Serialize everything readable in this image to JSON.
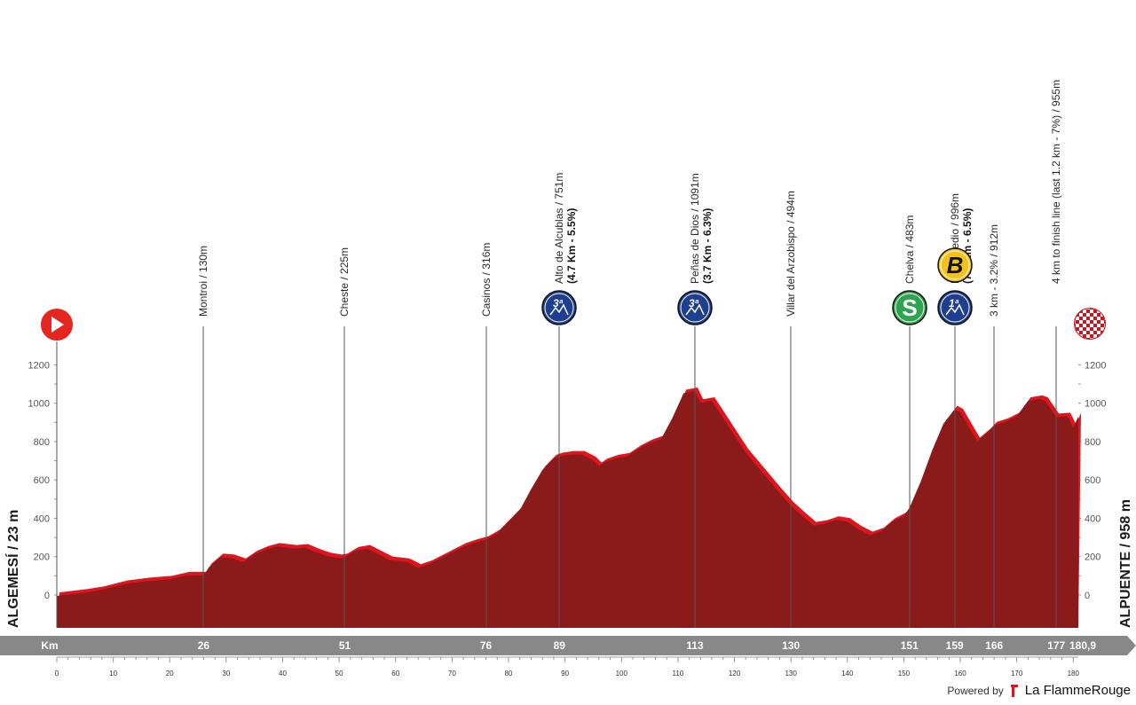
{
  "chart_data": {
    "type": "area",
    "title": "",
    "start_label": "ALGEMESÍ / 23 m",
    "finish_label": "ALPUENTE / 958 m",
    "band_label": "Km",
    "total_km_label": "180,9",
    "xlim": [
      0,
      180.9
    ],
    "ylim": [
      0,
      1250
    ],
    "y_ticks": [
      0,
      200,
      400,
      600,
      800,
      1000,
      1200
    ],
    "x_ticks": [
      0,
      10,
      20,
      30,
      40,
      50,
      60,
      70,
      80,
      90,
      100,
      110,
      120,
      130,
      140,
      150,
      160,
      170,
      180
    ],
    "x_tick_labels": [
      "0",
      "10",
      "20",
      "30",
      "40",
      "50",
      "60",
      "70",
      "80",
      "90",
      "100",
      "110",
      "120",
      "130",
      "140",
      "150",
      "160",
      "170",
      "180"
    ],
    "profile": [
      {
        "km": 0,
        "alt": 23
      },
      {
        "km": 5,
        "alt": 40
      },
      {
        "km": 8,
        "alt": 55
      },
      {
        "km": 12,
        "alt": 85
      },
      {
        "km": 16,
        "alt": 100
      },
      {
        "km": 20,
        "alt": 110
      },
      {
        "km": 23,
        "alt": 130
      },
      {
        "km": 26,
        "alt": 130
      },
      {
        "km": 27,
        "alt": 175
      },
      {
        "km": 29,
        "alt": 225
      },
      {
        "km": 31,
        "alt": 220
      },
      {
        "km": 33,
        "alt": 200
      },
      {
        "km": 35,
        "alt": 240
      },
      {
        "km": 37,
        "alt": 265
      },
      {
        "km": 39,
        "alt": 280
      },
      {
        "km": 42,
        "alt": 270
      },
      {
        "km": 44,
        "alt": 275
      },
      {
        "km": 46,
        "alt": 250
      },
      {
        "km": 48,
        "alt": 230
      },
      {
        "km": 50,
        "alt": 220
      },
      {
        "km": 51,
        "alt": 225
      },
      {
        "km": 53,
        "alt": 260
      },
      {
        "km": 55,
        "alt": 270
      },
      {
        "km": 57,
        "alt": 240
      },
      {
        "km": 59,
        "alt": 210
      },
      {
        "km": 62,
        "alt": 200
      },
      {
        "km": 64,
        "alt": 170
      },
      {
        "km": 66,
        "alt": 190
      },
      {
        "km": 68,
        "alt": 220
      },
      {
        "km": 70,
        "alt": 250
      },
      {
        "km": 72,
        "alt": 280
      },
      {
        "km": 74,
        "alt": 300
      },
      {
        "km": 76,
        "alt": 316
      },
      {
        "km": 78,
        "alt": 350
      },
      {
        "km": 80,
        "alt": 410
      },
      {
        "km": 82,
        "alt": 470
      },
      {
        "km": 84,
        "alt": 580
      },
      {
        "km": 86,
        "alt": 680
      },
      {
        "km": 88,
        "alt": 740
      },
      {
        "km": 89,
        "alt": 751
      },
      {
        "km": 91,
        "alt": 760
      },
      {
        "km": 93,
        "alt": 760
      },
      {
        "km": 95,
        "alt": 730
      },
      {
        "km": 96,
        "alt": 700
      },
      {
        "km": 97,
        "alt": 720
      },
      {
        "km": 99,
        "alt": 740
      },
      {
        "km": 101,
        "alt": 750
      },
      {
        "km": 103,
        "alt": 790
      },
      {
        "km": 105,
        "alt": 820
      },
      {
        "km": 107,
        "alt": 840
      },
      {
        "km": 109,
        "alt": 950
      },
      {
        "km": 111,
        "alt": 1080
      },
      {
        "km": 113,
        "alt": 1091
      },
      {
        "km": 114,
        "alt": 1030
      },
      {
        "km": 116,
        "alt": 1040
      },
      {
        "km": 118,
        "alt": 950
      },
      {
        "km": 120,
        "alt": 860
      },
      {
        "km": 122,
        "alt": 770
      },
      {
        "km": 124,
        "alt": 700
      },
      {
        "km": 126,
        "alt": 630
      },
      {
        "km": 128,
        "alt": 560
      },
      {
        "km": 130,
        "alt": 494
      },
      {
        "km": 132,
        "alt": 440
      },
      {
        "km": 134,
        "alt": 390
      },
      {
        "km": 136,
        "alt": 400
      },
      {
        "km": 138,
        "alt": 420
      },
      {
        "km": 140,
        "alt": 410
      },
      {
        "km": 142,
        "alt": 370
      },
      {
        "km": 144,
        "alt": 340
      },
      {
        "km": 146,
        "alt": 360
      },
      {
        "km": 148,
        "alt": 410
      },
      {
        "km": 150,
        "alt": 440
      },
      {
        "km": 151,
        "alt": 483
      },
      {
        "km": 153,
        "alt": 620
      },
      {
        "km": 155,
        "alt": 780
      },
      {
        "km": 157,
        "alt": 920
      },
      {
        "km": 159,
        "alt": 996
      },
      {
        "km": 160,
        "alt": 980
      },
      {
        "km": 162,
        "alt": 880
      },
      {
        "km": 163,
        "alt": 830
      },
      {
        "km": 165,
        "alt": 880
      },
      {
        "km": 166,
        "alt": 912
      },
      {
        "km": 168,
        "alt": 930
      },
      {
        "km": 170,
        "alt": 960
      },
      {
        "km": 172,
        "alt": 1040
      },
      {
        "km": 174,
        "alt": 1050
      },
      {
        "km": 175,
        "alt": 1040
      },
      {
        "km": 177,
        "alt": 955
      },
      {
        "km": 179,
        "alt": 960
      },
      {
        "km": 180,
        "alt": 900
      },
      {
        "km": 180.9,
        "alt": 958
      }
    ],
    "waypoints": [
      {
        "km": 26,
        "band_label": "26",
        "label": "Montroi / 130m",
        "detail": "",
        "icon": ""
      },
      {
        "km": 51,
        "band_label": "51",
        "label": "Cheste / 225m",
        "detail": "",
        "icon": ""
      },
      {
        "km": 76,
        "band_label": "76",
        "label": "Casinos / 316m",
        "detail": "",
        "icon": ""
      },
      {
        "km": 89,
        "band_label": "89",
        "label": "Alto de Alcublas / 751m",
        "detail": "(4.7 Km - 5.5%)",
        "icon": "climb-3rd",
        "icon_text": "3ª"
      },
      {
        "km": 113,
        "band_label": "113",
        "label": "Peñas de Dios / 1091m",
        "detail": "(3.7 Km - 6.3%)",
        "icon": "climb-3rd",
        "icon_text": "3ª"
      },
      {
        "km": 130,
        "band_label": "130",
        "label": "Villar del Arzobispo / 494m",
        "detail": "",
        "icon": ""
      },
      {
        "km": 151,
        "band_label": "151",
        "label": "Chelva / 483m",
        "detail": "",
        "icon": "sprint",
        "icon_text": "S"
      },
      {
        "km": 159,
        "band_label": "159",
        "label": "El Remedio / 996m",
        "detail": "(7.9 Km - 6.5%)",
        "icon": "climb-1st",
        "icon_text": "1ª",
        "bonus_text": "B"
      },
      {
        "km": 166,
        "band_label": "166",
        "label": "3 km - 3.2% / 912m",
        "detail": "",
        "icon": ""
      },
      {
        "km": 177,
        "band_label": "177",
        "label": "4 km to finish line (last 1.2 km - 7%) / 955m",
        "detail": "",
        "icon": "finish"
      }
    ],
    "colors": {
      "profile_fill": "#8b1a1a",
      "profile_edge": "#e0141c",
      "band": "#888888",
      "climb_icon": "#1e3f8f",
      "sprint_icon": "#2da44e",
      "bonus_icon": "#f4c21b",
      "start_icon": "#e42520"
    }
  },
  "footer": {
    "powered_by": "Powered by",
    "brand": "La FlammeRouge"
  }
}
